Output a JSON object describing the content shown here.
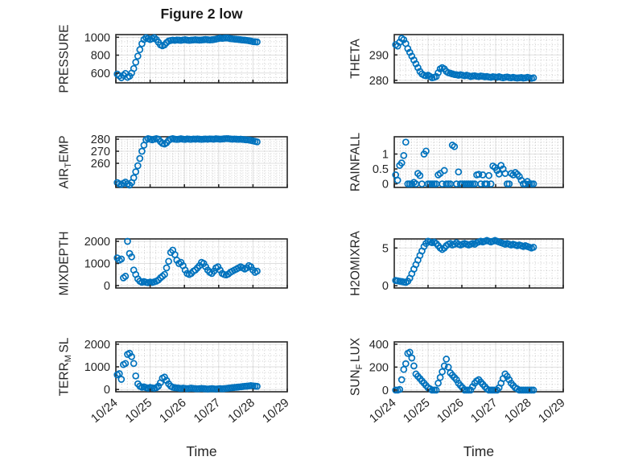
{
  "figure": {
    "title": "Figure 2 low"
  },
  "colors": {
    "marker": "#0072BD",
    "axis": "#262626",
    "background": "#ffffff"
  },
  "x_axis": {
    "label": "Time",
    "tick_labels": [
      "10/24",
      "10/25",
      "10/26",
      "10/27",
      "10/28",
      "10/29"
    ],
    "range_days": [
      0,
      5
    ],
    "minor_divisions_per_day": 6,
    "unit": "days since 10/24"
  },
  "chart_data": [
    {
      "type": "scatter",
      "key": "pressure",
      "name": "PRESSURE",
      "ylabel_parts": [
        {
          "t": "PRESSURE"
        }
      ],
      "yticks": [
        600,
        800,
        1000
      ],
      "ylim": [
        490,
        1030
      ],
      "y_minor_step": 50,
      "xlim": [
        0,
        5
      ],
      "x_start": 0.04,
      "x_step": 0.06,
      "y": [
        588,
        568,
        548,
        575,
        595,
        552,
        565,
        600,
        650,
        720,
        790,
        862,
        928,
        975,
        995,
        985,
        975,
        985,
        995,
        975,
        945,
        915,
        905,
        915,
        940,
        958,
        964,
        969,
        965,
        970,
        968,
        965,
        970,
        972,
        968,
        965,
        968,
        970,
        972,
        970,
        968,
        970,
        972,
        975,
        972,
        970,
        972,
        975,
        980,
        985,
        990,
        988,
        990,
        992,
        990,
        985,
        982,
        980,
        978,
        975,
        972,
        970,
        968,
        965,
        962,
        958,
        952,
        950,
        948
      ]
    },
    {
      "type": "scatter",
      "key": "theta",
      "name": "THETA",
      "ylabel_parts": [
        {
          "t": "THETA"
        }
      ],
      "yticks": [
        280,
        290
      ],
      "ylim": [
        279,
        298
      ],
      "y_minor_step": 2,
      "xlim": [
        0,
        5
      ],
      "x_start": 0.04,
      "x_step": 0.06,
      "y": [
        294,
        293.5,
        295,
        296.5,
        296,
        294.5,
        292.5,
        291,
        289.5,
        288,
        286.5,
        285,
        283.5,
        282.5,
        282,
        281.8,
        282,
        281.5,
        281,
        281.2,
        281.5,
        283,
        284.5,
        285,
        284.5,
        283.5,
        283,
        282.8,
        282.5,
        282.3,
        282.2,
        282,
        282.2,
        282,
        281.8,
        282,
        281.8,
        281.5,
        281.7,
        281.8,
        281.6,
        281.5,
        281.7,
        281.6,
        281.4,
        281.5,
        281.3,
        281.2,
        281.4,
        281.3,
        281.2,
        281.4,
        281.2,
        281,
        281.2,
        281.3,
        281.1,
        281,
        281.2,
        281,
        280.9,
        281,
        281.1,
        280.9,
        281,
        281.2,
        281,
        280.8,
        281
      ]
    },
    {
      "type": "scatter",
      "key": "air-temp",
      "name": "AIR_TEMP",
      "ylabel_parts": [
        {
          "t": "AIR"
        },
        {
          "s": "T"
        },
        {
          "t": "EMP"
        }
      ],
      "yticks": [
        260,
        270,
        280
      ],
      "ylim": [
        240,
        282
      ],
      "y_minor_step": 2,
      "xlim": [
        0,
        5
      ],
      "x_start": 0.04,
      "x_step": 0.06,
      "y": [
        244,
        243,
        242.5,
        243.5,
        244.5,
        243,
        242,
        244,
        248,
        253,
        258,
        264,
        270,
        275,
        279.5,
        280.5,
        280,
        279.5,
        280,
        280.5,
        280,
        278,
        276.5,
        276,
        277,
        279,
        280,
        280.5,
        280,
        279.8,
        280,
        280.3,
        280,
        279.8,
        280.2,
        280,
        279.9,
        280.1,
        280,
        280.2,
        280,
        279.9,
        280,
        280.1,
        280,
        280.2,
        280.1,
        280,
        280.3,
        280.2,
        280,
        280.1,
        280.3,
        280.5,
        280.4,
        280.2,
        280,
        280.1,
        280,
        279.9,
        280,
        279.8,
        279.6,
        279.5,
        279.3,
        279,
        278.6,
        278.2,
        277.8
      ]
    },
    {
      "type": "scatter",
      "key": "rainfall",
      "name": "RAINFALL",
      "ylabel_parts": [
        {
          "t": "RAINFALL"
        }
      ],
      "yticks": [
        0,
        0.5,
        1
      ],
      "ylim": [
        -0.12,
        1.58
      ],
      "y_minor_step": 0.1,
      "xlim": [
        0,
        5
      ],
      "x_start": 0.04,
      "x_step": 0.06,
      "y": [
        0.3,
        0.12,
        0.62,
        0.7,
        0.95,
        1.4,
        0,
        0,
        0,
        0.05,
        0,
        0.35,
        0.28,
        0,
        1.0,
        1.1,
        0,
        0,
        0,
        0,
        0,
        0.3,
        0.35,
        0,
        0.45,
        0,
        0,
        0,
        1.3,
        1.25,
        0,
        0.4,
        0,
        0,
        0,
        0,
        0,
        0,
        0,
        0,
        0.3,
        0.32,
        0,
        0.3,
        0,
        0,
        0.28,
        0,
        0.6,
        0.55,
        0.45,
        0.33,
        0.62,
        0.5,
        0.35,
        0,
        0,
        0.35,
        0.3,
        0.38,
        0.32,
        0.25,
        0.12,
        0,
        0,
        0.08,
        0,
        0,
        0
      ]
    },
    {
      "type": "scatter",
      "key": "mixdepth",
      "name": "MIXDEPTH",
      "ylabel_parts": [
        {
          "t": "MIXDEPTH"
        }
      ],
      "yticks": [
        0,
        1000,
        2000
      ],
      "ylim": [
        -110,
        2110
      ],
      "y_minor_step": 250,
      "xlim": [
        0,
        5
      ],
      "x_start": 0.04,
      "x_step": 0.06,
      "y": [
        1250,
        1150,
        1200,
        350,
        420,
        2000,
        1450,
        1300,
        700,
        500,
        300,
        200,
        150,
        180,
        150,
        130,
        160,
        140,
        170,
        200,
        250,
        350,
        420,
        500,
        800,
        1100,
        1500,
        1600,
        1400,
        1150,
        1000,
        1050,
        900,
        700,
        550,
        500,
        550,
        650,
        700,
        800,
        900,
        1050,
        1000,
        850,
        700,
        600,
        550,
        650,
        800,
        850,
        700,
        550,
        500,
        480,
        520,
        600,
        650,
        700,
        750,
        800,
        850,
        800,
        750,
        800,
        900,
        850,
        700,
        600,
        650
      ]
    },
    {
      "type": "scatter",
      "key": "h2omixra",
      "name": "H2OMIXRA",
      "ylabel_parts": [
        {
          "t": "H2OMIXRA"
        }
      ],
      "yticks": [
        0,
        5
      ],
      "ylim": [
        -0.3,
        6.2
      ],
      "y_minor_step": 1,
      "xlim": [
        0,
        5
      ],
      "x_start": 0.04,
      "x_step": 0.06,
      "y": [
        0.7,
        0.65,
        0.6,
        0.55,
        0.5,
        0.45,
        0.6,
        1.0,
        1.6,
        2.2,
        2.8,
        3.4,
        4.0,
        4.6,
        5.2,
        5.6,
        5.9,
        5.8,
        5.7,
        5.8,
        5.6,
        5.3,
        5.0,
        4.8,
        5.0,
        5.3,
        5.5,
        5.6,
        5.4,
        5.5,
        5.7,
        5.5,
        5.4,
        5.5,
        5.6,
        5.5,
        5.4,
        5.5,
        5.6,
        5.5,
        5.7,
        5.8,
        5.9,
        5.8,
        5.9,
        6.0,
        5.9,
        5.8,
        5.9,
        6.0,
        5.9,
        5.8,
        5.7,
        5.6,
        5.5,
        5.6,
        5.5,
        5.4,
        5.5,
        5.4,
        5.3,
        5.4,
        5.3,
        5.2,
        5.3,
        5.2,
        5.1,
        5.0,
        5.1
      ]
    },
    {
      "type": "scatter",
      "key": "terr-m-sl",
      "name": "TERR_MSL",
      "ylabel_parts": [
        {
          "t": "TERR"
        },
        {
          "s": "M"
        },
        {
          "t": "SL",
          "sp": true
        }
      ],
      "yticks": [
        0,
        1000,
        2000
      ],
      "ylim": [
        -100,
        2100
      ],
      "y_minor_step": 250,
      "xlim": [
        0,
        5
      ],
      "x_start": 0.04,
      "x_step": 0.06,
      "y": [
        650,
        700,
        450,
        1100,
        1150,
        1550,
        1600,
        1450,
        1150,
        600,
        250,
        150,
        100,
        120,
        80,
        60,
        90,
        70,
        60,
        80,
        150,
        300,
        500,
        550,
        400,
        250,
        150,
        100,
        80,
        70,
        60,
        50,
        60,
        50,
        40,
        50,
        60,
        50,
        40,
        30,
        40,
        50,
        40,
        30,
        20,
        30,
        40,
        30,
        20,
        30,
        40,
        30,
        40,
        50,
        60,
        70,
        80,
        90,
        100,
        110,
        120,
        130,
        140,
        150,
        160,
        170,
        160,
        150,
        140
      ]
    },
    {
      "type": "scatter",
      "key": "sun-flux",
      "name": "SUN_FLUX",
      "ylabel_parts": [
        {
          "t": "SUN"
        },
        {
          "s": "F"
        },
        {
          "t": "LUX",
          "sp": true
        }
      ],
      "yticks": [
        0,
        200,
        400
      ],
      "ylim": [
        -15,
        420
      ],
      "y_minor_step": 50,
      "xlim": [
        0,
        5
      ],
      "x_start": 0.04,
      "x_step": 0.06,
      "y": [
        0,
        0,
        5,
        90,
        180,
        230,
        320,
        330,
        280,
        210,
        140,
        120,
        100,
        80,
        60,
        40,
        20,
        10,
        0,
        0,
        0,
        60,
        110,
        160,
        210,
        270,
        200,
        150,
        130,
        110,
        90,
        60,
        40,
        20,
        0,
        0,
        0,
        0,
        30,
        60,
        80,
        90,
        70,
        50,
        30,
        10,
        0,
        0,
        0,
        0,
        0,
        20,
        60,
        100,
        140,
        120,
        90,
        60,
        40,
        20,
        10,
        0,
        0,
        0,
        0,
        0,
        0,
        0,
        0
      ]
    }
  ]
}
